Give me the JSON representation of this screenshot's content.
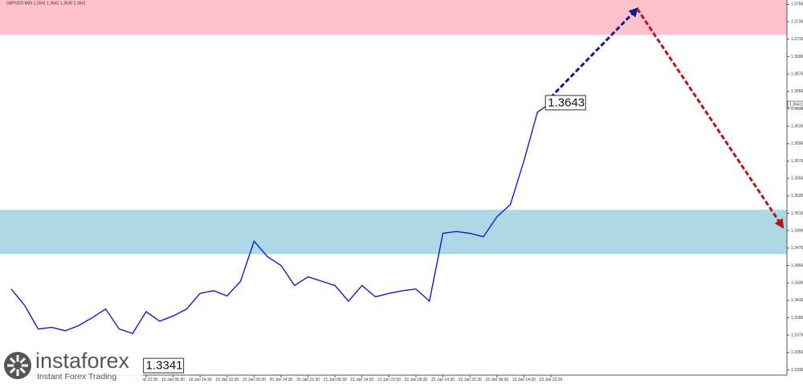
{
  "chart_data": {
    "type": "line",
    "title": "GBPUSD,M30 1.3641 1.3642 1.3630 1.3641",
    "categories": [
      null,
      null,
      null,
      null,
      null,
      null,
      null,
      null,
      null,
      null,
      "18 Jan 22:30",
      null,
      "19 Jan 06:30",
      null,
      "19 Jan 14:30",
      null,
      "19 Jan 22:30",
      null,
      "20 Jan 06:30",
      null,
      "20 Jan 14:30",
      null,
      "20 Jan 22:30",
      null,
      "21 Jan 06:30",
      null,
      "21 Jan 14:30",
      null,
      "21 Jan 22:30",
      null,
      "22 Jan 06:30",
      null,
      "22 Jan 14:30",
      null,
      "22 Jan 22:30",
      null,
      "23 Jan 06:30",
      null,
      "23 Jan 14:30",
      null,
      "23 Jan 22:30"
    ],
    "series": [
      {
        "color": "#1a1acf",
        "values": [
          1.3429,
          1.341,
          1.3383,
          1.3385,
          1.3381,
          1.3387,
          1.3396,
          1.3406,
          1.3383,
          1.3378,
          1.3403,
          1.3392,
          1.3398,
          1.3406,
          1.3424,
          1.3427,
          1.3421,
          1.3438,
          1.3484,
          1.3466,
          1.3456,
          1.3433,
          1.3443,
          1.3438,
          1.3433,
          1.3415,
          1.3433,
          1.342,
          1.3424,
          1.3427,
          1.3429,
          1.3415,
          1.3493,
          1.3495,
          1.3493,
          1.3489,
          1.3512,
          1.3526,
          1.3576,
          1.3632,
          1.3643
        ]
      }
    ],
    "ylim": [
      1.333,
      1.3761
    ],
    "yticks": [
      1.3756,
      1.3736,
      1.3716,
      1.3696,
      1.3676,
      1.3656,
      1.3636,
      1.3616,
      1.3596,
      1.3576,
      1.3556,
      1.3536,
      1.3516,
      1.3496,
      1.3476,
      1.3456,
      1.3436,
      1.3416,
      1.3396,
      1.3376,
      1.3356,
      1.3336
    ],
    "last_price": 1.3641,
    "zones": [
      {
        "from": 1.3721,
        "to": 1.3761,
        "color": "#ffc2cc"
      },
      {
        "from": 1.3469,
        "to": 1.352,
        "color": "#add8e6"
      }
    ],
    "arrows": [
      {
        "color": "#0d1f8c",
        "start": [
          39.6,
          1.3643
        ],
        "end": [
          46.4,
          1.3751
        ]
      },
      {
        "color": "#b01818",
        "start": [
          46.4,
          1.3751
        ],
        "end": [
          57.2,
          1.35
        ]
      }
    ],
    "annotations": [
      {
        "value": 1.3643,
        "x": 39.6
      },
      {
        "value": 1.3341,
        "x": 9.8
      }
    ]
  },
  "watermark": {
    "brand": "instaforex",
    "tagline": "Instant Forex Trading"
  }
}
